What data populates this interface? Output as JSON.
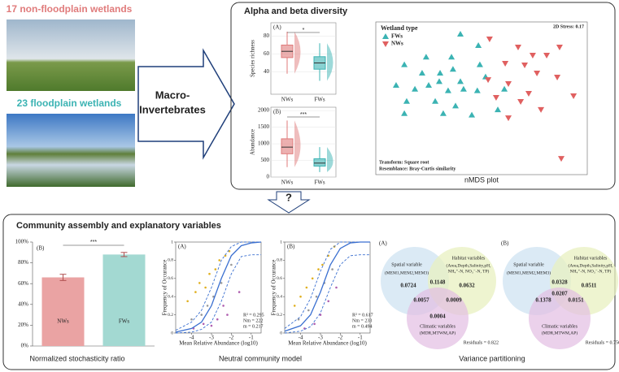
{
  "photos": {
    "top_label": "17 non-floodplain wetlands",
    "bottom_label": "23 floodplain wetlands"
  },
  "arrow_label": [
    "Macro-",
    "Invertebrates"
  ],
  "diversity": {
    "title": "Alpha and beta diversity",
    "richness": {
      "type": "box",
      "panel": "(A)",
      "ylabel": "Species richness",
      "categories": [
        "NWs",
        "FWs"
      ],
      "colors": [
        "#e07b7b",
        "#3bb3b3"
      ],
      "ylim": [
        15,
        95
      ],
      "yticks": [
        40,
        60,
        80
      ],
      "significance": "*",
      "boxes": [
        {
          "min": 38,
          "q1": 56,
          "median": 63,
          "q3": 70,
          "max": 85
        },
        {
          "min": 30,
          "q1": 43,
          "median": 50,
          "q3": 57,
          "max": 72
        }
      ]
    },
    "abundance": {
      "type": "box",
      "panel": "(B)",
      "ylabel": "Abundance",
      "categories": [
        "NWs",
        "FWs"
      ],
      "colors": [
        "#e07b7b",
        "#3bb3b3"
      ],
      "ylim": [
        0,
        2100
      ],
      "yticks": [
        0,
        500,
        1000,
        1500,
        2000
      ],
      "significance": "***",
      "boxes": [
        {
          "min": 300,
          "q1": 700,
          "median": 900,
          "q3": 1150,
          "max": 1700
        },
        {
          "min": 150,
          "q1": 330,
          "median": 420,
          "q3": 550,
          "max": 900
        }
      ]
    },
    "nmds": {
      "type": "scatter",
      "legend_title": "Wetland type",
      "stress": "2D Stress: 0.17",
      "transform": "Transform: Square root",
      "resemblance": "Resemblance: Bray-Curtis similarity",
      "caption": "nMDS plot",
      "xlim": [
        0,
        100
      ],
      "ylim": [
        0,
        100
      ],
      "series": [
        {
          "name": "FWs",
          "color": "#3bb3b3",
          "marker": "triangle-up",
          "x": [
            40,
            48.5,
            23.8,
            35.8,
            13.5,
            21.9,
            36.5,
            30.4,
            49.2,
            30,
            40,
            51.9,
            9.6,
            18.5,
            25,
            34.2,
            41.5,
            48,
            14.6,
            28.1,
            37.7,
            45.4,
            60.8,
            57.7,
            13.5,
            31.9
          ],
          "y": [
            92,
            84.6,
            77,
            77,
            72,
            66.5,
            69,
            66.5,
            72,
            61,
            61,
            64,
            58.5,
            56,
            58.5,
            55,
            56,
            55,
            48,
            48,
            45,
            39,
            56,
            42.5,
            40,
            40
          ]
        },
        {
          "name": "NWs",
          "color": "#e06060",
          "marker": "triangle-down",
          "x": [
            53.8,
            67.3,
            74.2,
            80.8,
            86.9,
            61.2,
            70.4,
            76.2,
            85.8,
            53.1,
            62.7,
            72.3,
            56.9,
            68.5,
            78.1,
            93.5,
            62.7,
            87.7
          ],
          "y": [
            88.8,
            83.5,
            78.2,
            78.2,
            83.5,
            72.9,
            71.8,
            66.5,
            63.8,
            62.2,
            59.6,
            53.2,
            50.5,
            47.9,
            42.6,
            51.6,
            37.2,
            10.6
          ]
        }
      ]
    }
  },
  "question": "?",
  "assembly": {
    "title": "Community assembly and explanatory variables",
    "stochasticity": {
      "type": "bar",
      "panel": "(B)",
      "categories": [
        "NWs",
        "FWs"
      ],
      "values": [
        66,
        88
      ],
      "errors": [
        3,
        2
      ],
      "colors": [
        "#eaa3a3",
        "#a3d9d2"
      ],
      "ylim": [
        0,
        100
      ],
      "yticks": [
        {
          "value": 0,
          "label": "0%"
        },
        {
          "value": 20,
          "label": "20%"
        },
        {
          "value": 40,
          "label": "40%"
        },
        {
          "value": 60,
          "label": "60%"
        },
        {
          "value": 80,
          "label": "80%"
        },
        {
          "value": 100,
          "label": "100%"
        }
      ],
      "significance": "***",
      "caption": "Normalized stochasticity ratio"
    },
    "neutral": {
      "caption": "Neutral community model",
      "panels": [
        {
          "type": "line",
          "panel": "(A)",
          "xlabel": "Mean Relative Abundance (log10)",
          "ylabel": "Frequency of Occurance",
          "stats": [
            "R² = 0.295",
            "Nm = 222",
            "m = 0.217"
          ],
          "xlim": [
            -4.8,
            -0.5
          ],
          "ylim": [
            0,
            1
          ],
          "xticks": [
            -4,
            -3,
            -2,
            -1
          ],
          "yticks": [
            0,
            0.2,
            0.4,
            0.6,
            0.8,
            1
          ],
          "curves": [
            {
              "color": "#3a6fd0",
              "dash": false,
              "x": [
                -4.8,
                -4,
                -3.5,
                -3,
                -2.5,
                -2,
                -1.5,
                -1,
                -0.5
              ],
              "values": [
                0.01,
                0.05,
                0.12,
                0.3,
                0.6,
                0.85,
                0.96,
                0.99,
                1
              ]
            },
            {
              "color": "#3a6fd0",
              "dash": true,
              "x": [
                -4.8,
                -4,
                -3.5,
                -3,
                -2.5,
                -2,
                -1.5,
                -1,
                -0.5
              ],
              "values": [
                0.03,
                0.12,
                0.25,
                0.5,
                0.8,
                0.95,
                1,
                1,
                1
              ]
            },
            {
              "color": "#3a6fd0",
              "dash": true,
              "x": [
                -4.8,
                -4,
                -3.5,
                -3,
                -2.5,
                -2,
                -1.5,
                -1,
                -0.5
              ],
              "values": [
                0,
                0.01,
                0.04,
                0.12,
                0.35,
                0.65,
                0.84,
                0.86,
                0.86
              ]
            }
          ],
          "points": [
            {
              "color": "#e0b020",
              "x": [
                -4.2,
                -3.8,
                -3.6,
                -3.3,
                -3.1,
                -2.8,
                -2.6,
                -2.3,
                -2.1
              ],
              "y": [
                0.35,
                0.45,
                0.55,
                0.5,
                0.65,
                0.7,
                0.8,
                0.85,
                0.9
              ]
            },
            {
              "color": "#b05fb0",
              "x": [
                -3.9,
                -3.4,
                -3,
                -2.7,
                -2.4,
                -2.2,
                -1.6
              ],
              "y": [
                0.05,
                0.1,
                0.08,
                0.15,
                0.3,
                0.2,
                0.45
              ]
            },
            {
              "color": "#999999",
              "x": [
                -4,
                -3.5,
                -3.2,
                -2.9,
                -2.5,
                -2
              ],
              "y": [
                0.15,
                0.2,
                0.3,
                0.4,
                0.55,
                0.75
              ]
            }
          ]
        },
        {
          "type": "line",
          "panel": "(B)",
          "xlabel": "Mean Relative Abundance (log10)",
          "ylabel": "Frequency of Occurance",
          "stats": [
            "R² = 0.617",
            "Nm = 233",
            "m = 0.494"
          ],
          "xlim": [
            -4.8,
            -0.5
          ],
          "ylim": [
            0,
            1
          ],
          "xticks": [
            -4,
            -3,
            -2,
            -1
          ],
          "yticks": [
            0,
            0.2,
            0.4,
            0.6,
            0.8,
            1
          ],
          "curves": [
            {
              "color": "#3a6fd0",
              "dash": false,
              "x": [
                -4.8,
                -4,
                -3.5,
                -3,
                -2.5,
                -2,
                -1.5,
                -1,
                -0.5
              ],
              "values": [
                0.02,
                0.08,
                0.2,
                0.45,
                0.75,
                0.93,
                0.99,
                1,
                1
              ]
            },
            {
              "color": "#3a6fd0",
              "dash": true,
              "x": [
                -4.8,
                -4,
                -3.5,
                -3,
                -2.5,
                -2,
                -1.5,
                -1,
                -0.5
              ],
              "values": [
                0.05,
                0.18,
                0.38,
                0.68,
                0.92,
                1,
                1,
                1,
                1
              ]
            },
            {
              "color": "#3a6fd0",
              "dash": true,
              "x": [
                -4.8,
                -4,
                -3.5,
                -3,
                -2.5,
                -2,
                -1.5,
                -1,
                -0.5
              ],
              "values": [
                0,
                0.02,
                0.07,
                0.22,
                0.5,
                0.75,
                0.85,
                0.86,
                0.86
              ]
            }
          ],
          "points": [
            {
              "color": "#e0b020",
              "x": [
                -4.3,
                -4,
                -3.7,
                -3.4,
                -3.1,
                -2.9,
                -2.6,
                -2.3
              ],
              "y": [
                0.3,
                0.4,
                0.5,
                0.6,
                0.7,
                0.75,
                0.85,
                0.95
              ]
            },
            {
              "color": "#b05fb0",
              "x": [
                -3.8,
                -3.3,
                -3,
                -2.6,
                -2.2
              ],
              "y": [
                0.05,
                0.1,
                0.2,
                0.35,
                0.5
              ]
            },
            {
              "color": "#999999",
              "x": [
                -4.1,
                -3.6,
                -3.2,
                -2.8,
                -2.4
              ],
              "y": [
                0.15,
                0.25,
                0.4,
                0.55,
                0.7
              ]
            }
          ]
        }
      ]
    },
    "variance": {
      "caption": "Variance partitioning",
      "panels": [
        {
          "panel": "(A)",
          "spatial_title": "Spatial variable",
          "spatial_vars": "(MEM1,MEM2,MEM3)",
          "habitat_title": "Habitat variables",
          "habitat_vars": [
            "(Area,Depth,Salinity,pH,",
            "NH₄⁺-N, NO₃⁻-N, TP)"
          ],
          "climatic_title": "Climatic variables",
          "climatic_vars": "(MDR,MTWM,AP)",
          "residuals": "Residuals = 0.822",
          "values": {
            "spatial": 0.0724,
            "habitat": 0.0632,
            "spatial_habitat": 0.1148,
            "spatial_climatic": 0.0057,
            "habitat_climatic": 0.0009,
            "climatic": 0.0004
          }
        },
        {
          "panel": "(B)",
          "spatial_title": "Spatial variable",
          "spatial_vars": "(MEM1,MEM2,MEM3)",
          "habitat_title": "Habitat variables",
          "habitat_vars": [
            "(Area,Depth,Salinity,pH,",
            "NH₄⁺-N, NO₃⁻-N, TP)"
          ],
          "climatic_title": "Climatic variables",
          "climatic_vars": "(MDR,MTWM,AP)",
          "residuals": "Residuals = 0.756",
          "values": {
            "spatial_habitat": 0.0328,
            "habitat": 0.0511,
            "all": 0.0207,
            "spatial_climatic": 0.1378,
            "habitat_climatic": 0.0151
          }
        }
      ]
    }
  }
}
